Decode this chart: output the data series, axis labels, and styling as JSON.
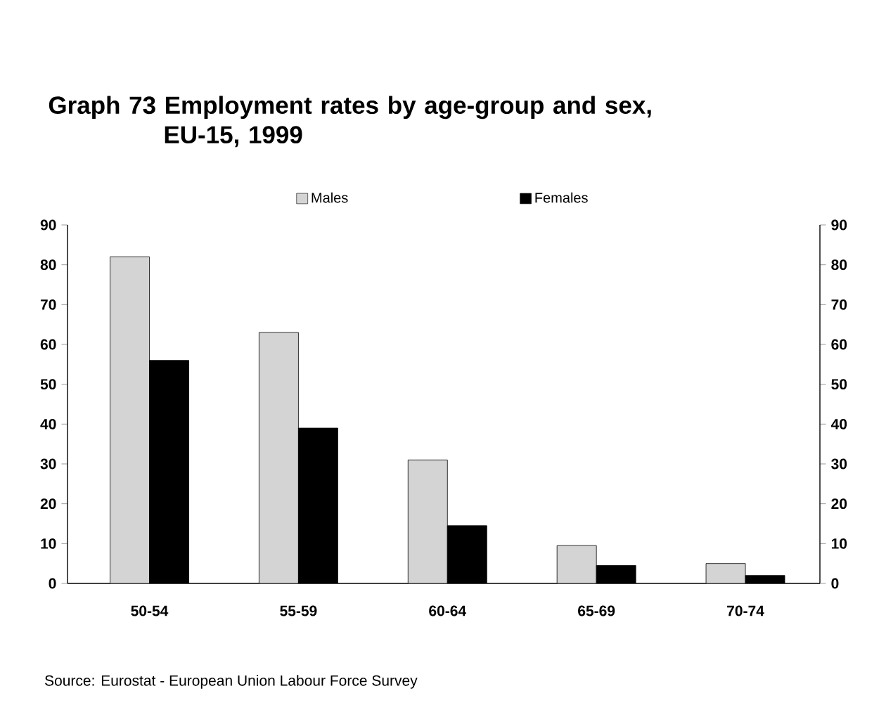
{
  "chart_data": {
    "type": "bar",
    "title": "Graph 73  Employment rates by age-group and sex, EU-15, 1999",
    "categories": [
      "50-54",
      "55-59",
      "60-64",
      "65-69",
      "70-74"
    ],
    "series": [
      {
        "name": "Males",
        "color": "#d4d4d4",
        "values": [
          82,
          63,
          31,
          9.5,
          5
        ]
      },
      {
        "name": "Females",
        "color": "#000000",
        "values": [
          56,
          39,
          14.5,
          4.5,
          2
        ]
      }
    ],
    "ylim": [
      0,
      90
    ],
    "yticks": [
      0,
      10,
      20,
      30,
      40,
      50,
      60,
      70,
      80,
      90
    ],
    "y2lim": [
      0,
      90
    ],
    "y2ticks": [
      0,
      10,
      20,
      30,
      40,
      50,
      60,
      70,
      80,
      90
    ],
    "legend": "top",
    "grid": false,
    "annotations": [
      "Source: Eurostat - European Union Labour Force Survey"
    ]
  }
}
